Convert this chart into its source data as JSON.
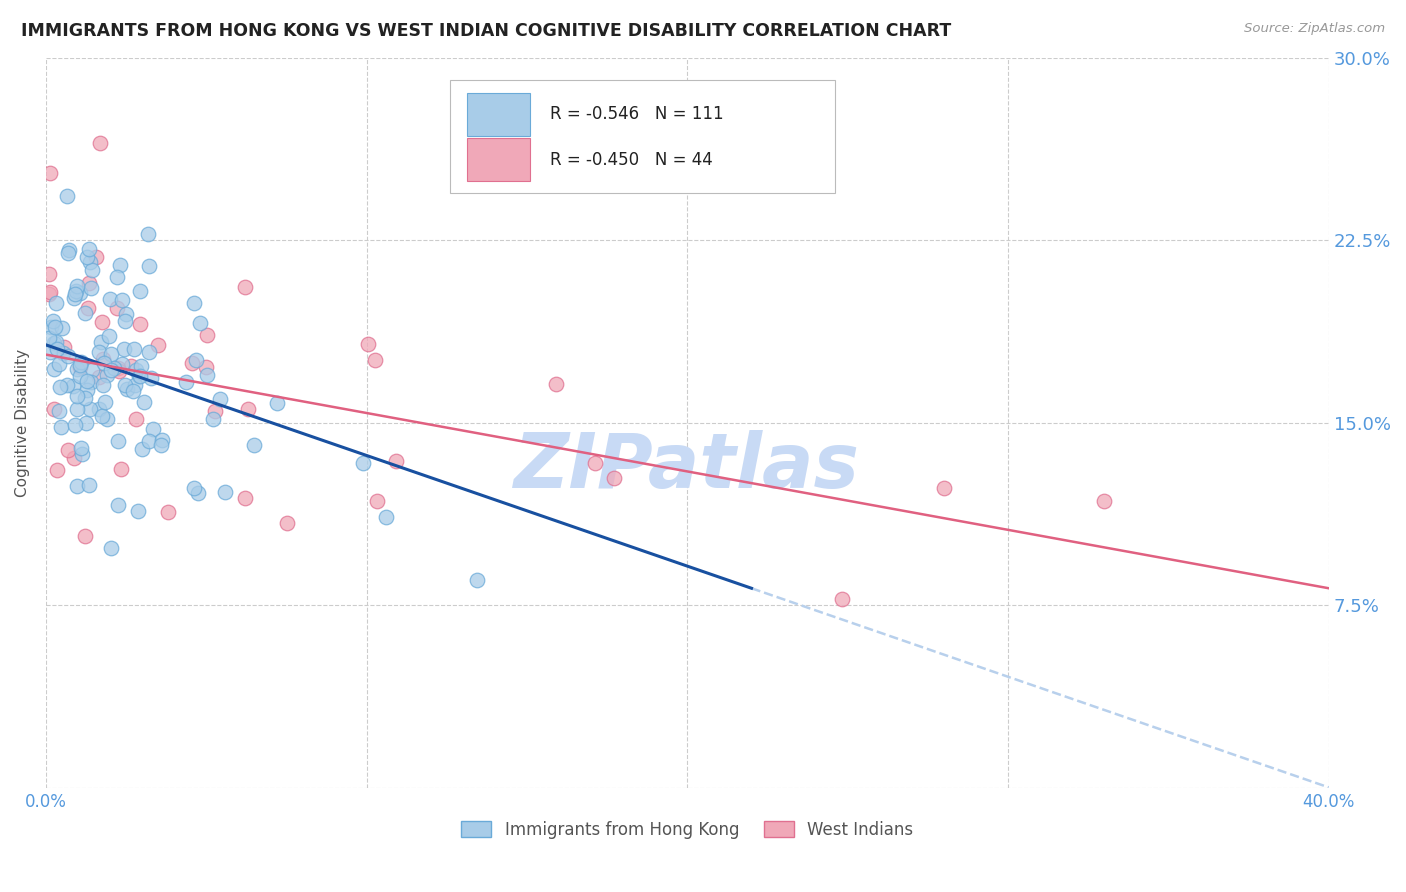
{
  "title": "IMMIGRANTS FROM HONG KONG VS WEST INDIAN COGNITIVE DISABILITY CORRELATION CHART",
  "source": "Source: ZipAtlas.com",
  "ylabel": "Cognitive Disability",
  "x_min": 0.0,
  "x_max": 0.4,
  "y_min": 0.0,
  "y_max": 0.3,
  "legend_r_hk": "-0.546",
  "legend_n_hk": "111",
  "legend_r_wi": "-0.450",
  "legend_n_wi": "44",
  "hk_color": "#a8cce8",
  "hk_edge_color": "#6aaad8",
  "wi_color": "#f0a8b8",
  "wi_edge_color": "#e07090",
  "trend_hk_solid_color": "#1850a0",
  "trend_hk_dash_color": "#b8d0ec",
  "trend_wi_color": "#e06080",
  "watermark": "ZIPatlas",
  "watermark_color": "#c8daf5",
  "background_color": "#ffffff",
  "grid_color": "#cccccc",
  "tick_label_color": "#5599dd",
  "trend_hk_x0": 0.0,
  "trend_hk_y0": 0.182,
  "trend_hk_x1": 0.22,
  "trend_hk_y1": 0.082,
  "trend_hk_xdash0": 0.22,
  "trend_hk_xdash1": 0.4,
  "trend_wi_x0": 0.0,
  "trend_wi_y0": 0.178,
  "trend_wi_x1": 0.4,
  "trend_wi_y1": 0.082
}
